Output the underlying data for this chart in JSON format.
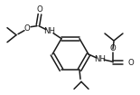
{
  "bg_color": "#ffffff",
  "line_color": "#1a1a1a",
  "bond_lw": 1.1,
  "figsize": [
    1.55,
    1.05
  ],
  "dpi": 100,
  "xlim": [
    0,
    155
  ],
  "ylim": [
    0,
    105
  ]
}
